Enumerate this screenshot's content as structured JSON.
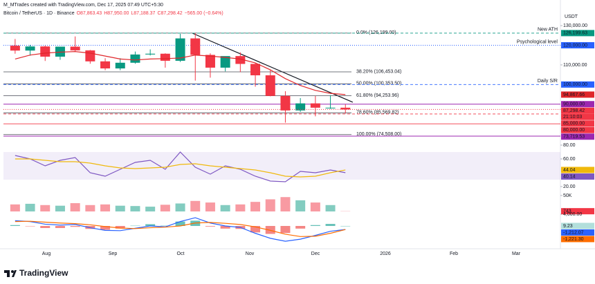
{
  "chart_data": {
    "type": "candlestick",
    "watermark": "M_MTrades created with TradingView.com, Dec 17, 2025 07:49 UTC+5:30",
    "title": "Bitcoin / TetherUS · 1D · Binance",
    "ohlc": [
      "O87,863.43",
      "H87,950.00",
      "L87,188.37",
      "C87,298.42",
      "−565.00 (−0.64%)"
    ],
    "currency": "USDT",
    "brand": "TradingView",
    "categories": [
      null,
      null,
      null,
      null,
      null,
      null,
      null,
      null,
      null,
      null,
      null,
      null,
      null,
      null,
      null,
      null,
      null,
      null,
      null,
      null,
      null,
      null,
      null
    ],
    "open": [
      119800,
      117300,
      119400,
      114200,
      119300,
      117400,
      111800,
      108200,
      111100,
      115300,
      115700,
      112100,
      123500,
      115100,
      108600,
      114500,
      110500,
      104700,
      94200,
      86800,
      90400,
      88200,
      88200
    ],
    "high": [
      123200,
      120200,
      119800,
      119300,
      124500,
      117600,
      113400,
      113400,
      116800,
      117900,
      115900,
      125800,
      126200,
      115900,
      114000,
      116400,
      110800,
      107500,
      96600,
      93100,
      94200,
      94600,
      89900
    ],
    "low": [
      115700,
      114700,
      112000,
      112600,
      116800,
      110600,
      107300,
      107300,
      110600,
      114800,
      108600,
      111500,
      102000,
      103500,
      106700,
      106300,
      98900,
      94000,
      80600,
      86100,
      83800,
      87600,
      85200
    ],
    "close": [
      117300,
      119400,
      114200,
      119300,
      117400,
      111800,
      108200,
      111100,
      115300,
      115700,
      112100,
      123500,
      115100,
      108600,
      114500,
      110500,
      104700,
      94200,
      86800,
      90400,
      88200,
      88200,
      87298.42
    ],
    "close_label": "87,298.42",
    "countdown": "21:10:03",
    "up_color": "#089981",
    "down_color": "#f23645",
    "ma": {
      "color": "#e0262a",
      "values": [
        113000,
        115000,
        116000,
        116500,
        116800,
        116000,
        114500,
        113000,
        112500,
        113000,
        113200,
        113500,
        115000,
        114500,
        113800,
        113000,
        111000,
        107500,
        103000,
        99500,
        97000,
        95500,
        94867.66
      ],
      "last_label": "94,867.66"
    },
    "ylim": [
      70900,
      132500
    ],
    "yticks": [
      {
        "value": 130000,
        "label": "130,000.00"
      },
      {
        "value": 110000,
        "label": "110,000.00"
      }
    ],
    "levels": [
      {
        "value": 126199.63,
        "label": "126,199.63",
        "text": "New ATH",
        "color": "#089981",
        "style": "dashed"
      },
      {
        "value": 120000,
        "label": "120,000.00",
        "text": "Psychological level",
        "color": "#2962ff",
        "style": "dotted"
      },
      {
        "value": 100000,
        "label": "100,000.00",
        "text": "Daily S/R",
        "color": "#2962ff",
        "style": "dashed"
      },
      {
        "value": 90000,
        "label": "90,000.00",
        "color": "#9c27b0",
        "style": "solid"
      },
      {
        "value": 85000,
        "label": "85,000.00",
        "color": "#f23645",
        "style": "dashed"
      },
      {
        "value": 80000,
        "label": "80,000.00",
        "color": "#f23645",
        "style": "solid"
      },
      {
        "value": 73719.53,
        "label": "73,719.53",
        "color": "#9c27b0",
        "style": "solid"
      }
    ],
    "fib_levels": [
      {
        "value": 126199,
        "label": "0.0% (126,199.00)"
      },
      {
        "value": 106453.04,
        "label": "38.20% (106,453.04)"
      },
      {
        "value": 100353.5,
        "label": "50.00% (100,353.50)"
      },
      {
        "value": 94253.96,
        "label": "61.80% (94,253.96)"
      },
      {
        "value": 85569.82,
        "label": "78.60% (85,569.82)"
      },
      {
        "value": 74508,
        "label": "100.00% (74,508.00)"
      }
    ],
    "time_labels": [
      "Aug",
      "Sep",
      "Oct",
      "Nov",
      "Dec",
      "2026",
      "Feb",
      "Mar"
    ],
    "rsi": {
      "ylim": [
        15,
        85
      ],
      "yticks": [
        {
          "value": 80,
          "label": "80.00"
        },
        {
          "value": 60,
          "label": "60.00"
        },
        {
          "value": 20,
          "label": "20.00"
        }
      ],
      "band": [
        30,
        70
      ],
      "series": [
        {
          "color": "#7e57c2",
          "values": [
            65,
            60,
            50,
            58,
            62,
            40,
            35,
            45,
            55,
            58,
            45,
            70,
            48,
            38,
            50,
            45,
            35,
            28,
            27,
            42,
            40,
            44,
            40.14
          ]
        },
        {
          "color": "#f0b90b",
          "values": [
            60,
            60,
            58,
            56,
            56,
            54,
            50,
            47,
            46,
            47,
            48,
            52,
            53,
            50,
            48,
            46,
            44,
            40,
            35,
            34,
            35,
            40,
            44.04
          ]
        }
      ]
    },
    "volume": {
      "ylim": [
        0,
        65000
      ],
      "yticks": [
        {
          "value": 50000,
          "label": "50K"
        }
      ],
      "values": [
        22000,
        24000,
        20000,
        18000,
        26000,
        20000,
        22000,
        18000,
        17000,
        15000,
        21000,
        25000,
        33000,
        28000,
        20000,
        22000,
        30000,
        38000,
        45000,
        35000,
        28000,
        20000,
        743
      ]
    },
    "macd": {
      "ylim": [
        -5880,
        4470
      ],
      "yticks": [
        {
          "value": 4000,
          "label": "4,000.00"
        }
      ],
      "histogram": {
        "values": [
          300,
          -100,
          -700,
          -700,
          -300,
          -1000,
          -1300,
          -900,
          100,
          600,
          100,
          1500,
          1800,
          -200,
          -900,
          -1000,
          -2200,
          -2700,
          -2400,
          -900,
          300,
          700,
          9.23
        ],
        "last_label": "9.23",
        "up_color": "#26a69a",
        "down_color": "#ef5350"
      },
      "macd": {
        "color": "#2962ff",
        "values": [
          1800,
          1500,
          600,
          300,
          500,
          -600,
          -1500,
          -1600,
          -800,
          0,
          -300,
          1500,
          2800,
          1000,
          0,
          -500,
          -2500,
          -4200,
          -5200,
          -4500,
          -3200,
          -1800,
          -1212.07
        ],
        "last_label": "-1,212.07"
      },
      "signal": {
        "color": "#ff6d00",
        "values": [
          1500,
          1600,
          1300,
          1000,
          800,
          400,
          -200,
          -700,
          -900,
          -600,
          -400,
          0,
          1000,
          1200,
          900,
          500,
          -300,
          -1500,
          -2800,
          -3600,
          -3500,
          -2500,
          -1221.3
        ],
        "last_label": "-1,221.30"
      }
    }
  }
}
